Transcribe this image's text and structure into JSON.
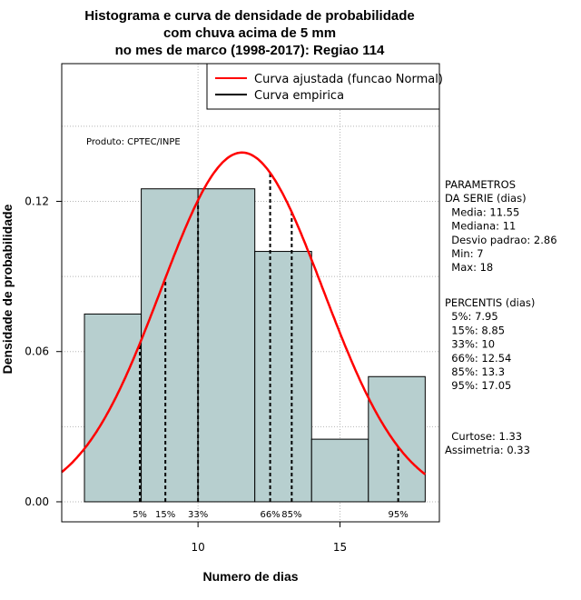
{
  "chart_data": {
    "type": "bar",
    "title_lines": [
      "Histograma e curva de densidade de probabilidade",
      "com chuva acima de 5 mm",
      "no mes de marco (1998-2017): Regiao 114"
    ],
    "xlabel": "Numero de dias",
    "ylabel": "Densidade de probabilidade",
    "xlim": [
      5.2,
      18.5
    ],
    "ylim": [
      -0.008,
      0.175
    ],
    "x_ticks": [
      10,
      15
    ],
    "y_ticks": [
      0.0,
      0.06,
      0.12
    ],
    "y_tick_labels": [
      "0.00",
      "0.06",
      "0.12"
    ],
    "grid": true,
    "bins": [
      {
        "x0": 6,
        "x1": 8,
        "density": 0.075
      },
      {
        "x0": 8,
        "x1": 10,
        "density": 0.125
      },
      {
        "x0": 10,
        "x1": 12,
        "density": 0.125
      },
      {
        "x0": 12,
        "x1": 14,
        "density": 0.1
      },
      {
        "x0": 14,
        "x1": 16,
        "density": 0.025
      },
      {
        "x0": 16,
        "x1": 18,
        "density": 0.05
      }
    ],
    "normal_curve": {
      "mean": 11.55,
      "sd": 2.86,
      "color": "#ff0000"
    },
    "bar_color": "#b7cfcf",
    "percentile_lines": [
      {
        "label": "5%",
        "x": 7.95
      },
      {
        "label": "15%",
        "x": 8.85
      },
      {
        "label": "33%",
        "x": 10
      },
      {
        "label": "66%",
        "x": 12.54
      },
      {
        "label": "85%",
        "x": 13.3
      },
      {
        "label": "95%",
        "x": 17.05
      }
    ],
    "legend": {
      "placement": "top-right",
      "entries": [
        {
          "label": "Curva ajustada (funcao Normal)",
          "color": "#ff0000"
        },
        {
          "label": "Curva empirica",
          "color": "#000000"
        }
      ]
    },
    "annotation": "Produto: CPTEC/INPE"
  },
  "side_panel": {
    "params_lines": [
      "PARAMETROS",
      "DA SERIE (dias)",
      "  Media: 11.55",
      "  Mediana: 11",
      "  Desvio padrao: 2.86",
      "  Min: 7",
      "  Max: 18"
    ],
    "percentis_lines": [
      "PERCENTIS (dias)",
      "  5%: 7.95",
      "  15%: 8.85",
      "  33%: 10",
      "  66%: 12.54",
      "  85%: 13.3",
      "  95%: 17.05"
    ],
    "stats_lines": [
      "  Curtose: 1.33",
      "Assimetria: 0.33"
    ]
  }
}
